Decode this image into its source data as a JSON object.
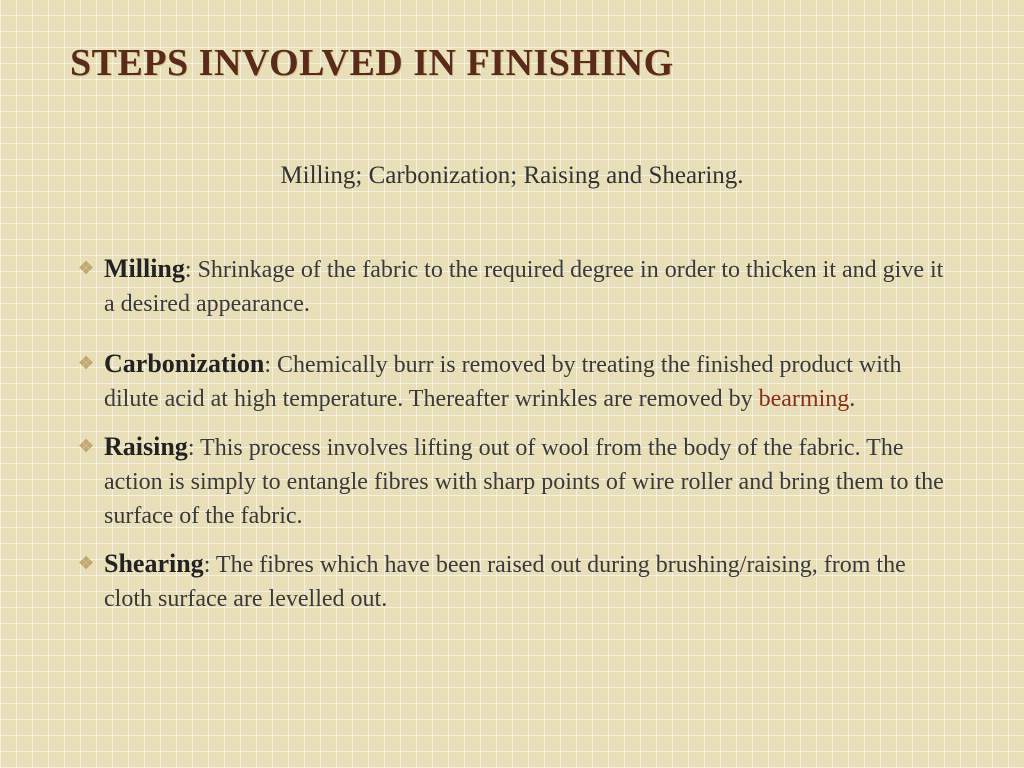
{
  "colors": {
    "title_color": "#5a2b1a",
    "title_shadow": "#d8c690",
    "subtitle_color": "#333333",
    "body_color": "#3a3a3a",
    "term_color": "#222222",
    "highlight_color": "#8a2c1a",
    "bullet_color": "#c7a96b",
    "background": "#e8dfb9"
  },
  "typography": {
    "title_fontsize": 38,
    "subtitle_fontsize": 25,
    "body_fontsize": 24,
    "term_fontsize": 26,
    "line_height": 34
  },
  "title": "STEPS INVOLVED IN FINISHING",
  "subtitle": "Milling;  Carbonization;  Raising and Shearing.",
  "bullet_glyph": "❖",
  "items": [
    {
      "term": "Milling",
      "sep": ": ",
      "text_before": "Shrinkage of the fabric to the required degree in order to thicken it and give it a desired appearance",
      "highlight": "",
      "text_after": ".",
      "spacing_after": 26
    },
    {
      "term": "Carbonization",
      "sep": ": ",
      "text_before": "Chemically burr is removed by treating the finished product with dilute acid at high temperature. Thereafter wrinkles are removed by ",
      "highlight": "bearming",
      "text_after": ".",
      "spacing_after": 14
    },
    {
      "term": "Raising",
      "sep": ": ",
      "text_before": "This process involves lifting out of wool from the body of the fabric. The action is simply to entangle fibres with sharp points of wire roller and bring them to the surface of the fabric.",
      "highlight": "",
      "text_after": "",
      "spacing_after": 14
    },
    {
      "term": "Shearing",
      "sep": ": ",
      "text_before": "The fibres which have been raised out during brushing/raising, from the cloth surface are levelled out.",
      "highlight": "",
      "text_after": "",
      "spacing_after": 14
    }
  ]
}
